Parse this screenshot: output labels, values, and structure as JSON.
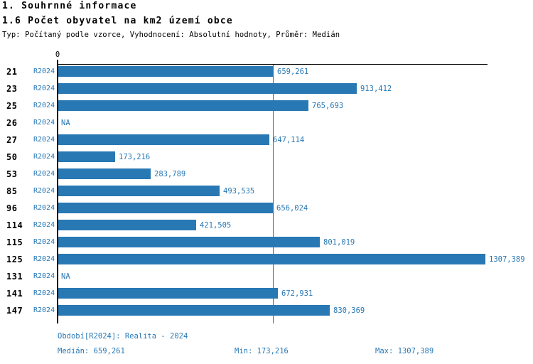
{
  "header": {
    "title1": "1. Souhrnné informace",
    "title2": "1.6 Počet obyvatel na km2 území obce",
    "subtitle": "Typ: Počítaný podle vzorce, Vyhodnocení: Absolutní hodnoty, Průměr: Medián"
  },
  "colors": {
    "accent": "#2878b4",
    "axis": "#000000",
    "background": "#ffffff"
  },
  "chart_data": {
    "type": "bar",
    "orientation": "horizontal",
    "title": "1.6 Počet obyvatel na km2 území obce",
    "value_axis": {
      "zero_label": "0",
      "min": 0,
      "max": 1316,
      "ticks_shown": [
        "0"
      ]
    },
    "median_value": 659.261,
    "median_line_shown": true,
    "period_label": "R2024",
    "rows": [
      {
        "group": "21",
        "period": "R2024",
        "value": 659.261,
        "label": "659,261"
      },
      {
        "group": "23",
        "period": "R2024",
        "value": 913.412,
        "label": "913,412"
      },
      {
        "group": "25",
        "period": "R2024",
        "value": 765.693,
        "label": "765,693"
      },
      {
        "group": "26",
        "period": "R2024",
        "value": null,
        "label": "NA"
      },
      {
        "group": "27",
        "period": "R2024",
        "value": 647.114,
        "label": "647,114"
      },
      {
        "group": "50",
        "period": "R2024",
        "value": 173.216,
        "label": "173,216"
      },
      {
        "group": "53",
        "period": "R2024",
        "value": 283.789,
        "label": "283,789"
      },
      {
        "group": "85",
        "period": "R2024",
        "value": 493.535,
        "label": "493,535"
      },
      {
        "group": "96",
        "period": "R2024",
        "value": 656.024,
        "label": "656,024"
      },
      {
        "group": "114",
        "period": "R2024",
        "value": 421.505,
        "label": "421,505"
      },
      {
        "group": "115",
        "period": "R2024",
        "value": 801.019,
        "label": "801,019"
      },
      {
        "group": "125",
        "period": "R2024",
        "value": 1307.389,
        "label": "1307,389"
      },
      {
        "group": "131",
        "period": "R2024",
        "value": null,
        "label": "NA"
      },
      {
        "group": "141",
        "period": "R2024",
        "value": 672.931,
        "label": "672,931"
      },
      {
        "group": "147",
        "period": "R2024",
        "value": 830.369,
        "label": "830,369"
      }
    ]
  },
  "footer": {
    "period_line": "Období[R2024]: Realita - 2024",
    "median": "Medián: 659,261",
    "min": "Min: 173,216",
    "max": "Max: 1307,389"
  }
}
